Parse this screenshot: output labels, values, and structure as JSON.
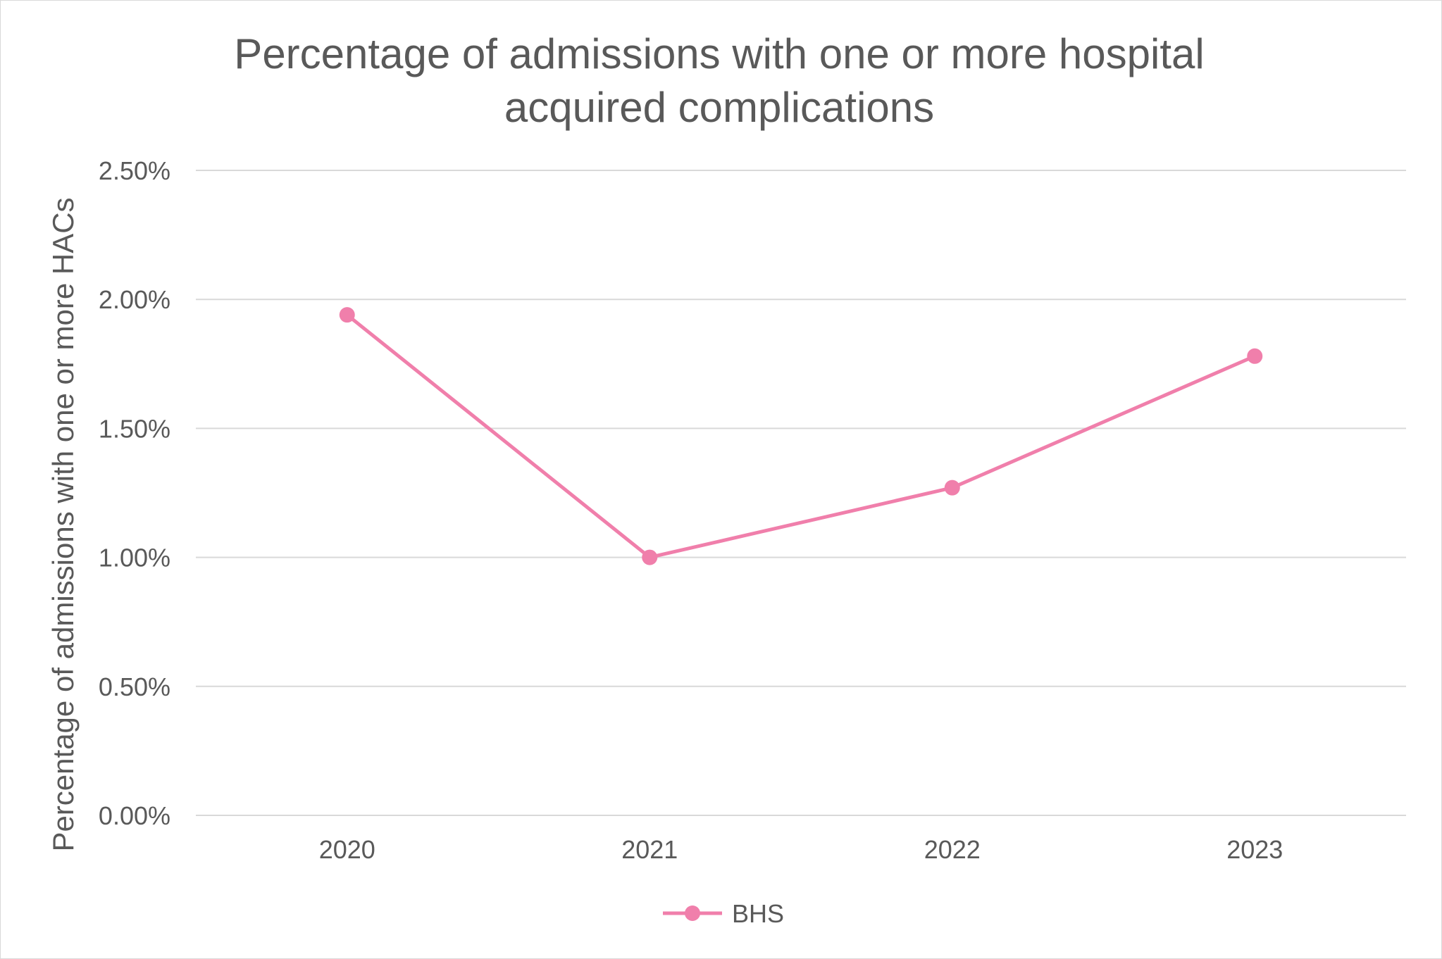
{
  "chart_data": {
    "type": "line",
    "title_line1": "Percentage of admissions with one or more hospital",
    "title_line2": "acquired complications",
    "xlabel": "",
    "ylabel": "Percentage of admissions with one or more HACs",
    "categories": [
      "2020",
      "2021",
      "2022",
      "2023"
    ],
    "y_ticks": [
      "0.00%",
      "0.50%",
      "1.00%",
      "1.50%",
      "2.00%",
      "2.50%"
    ],
    "ylim": [
      0,
      2.5
    ],
    "y_unit": "%",
    "grid": true,
    "legend_position": "bottom",
    "series": [
      {
        "name": "BHS",
        "color": "#f07fab",
        "values": [
          1.94,
          1.0,
          1.27,
          1.78
        ]
      }
    ]
  }
}
